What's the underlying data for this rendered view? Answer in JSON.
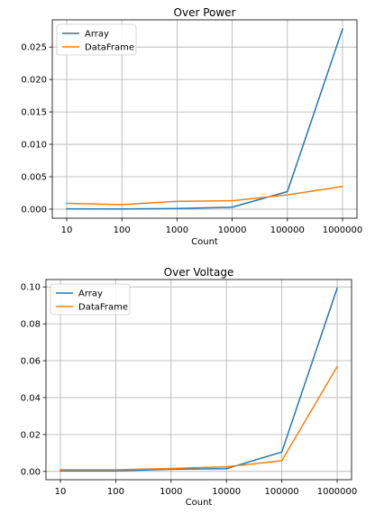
{
  "chart_data": [
    {
      "type": "line",
      "title": "Over Power",
      "xlabel": "Count",
      "ylabel": "",
      "categories": [
        "10",
        "100",
        "1000",
        "10000",
        "100000",
        "1000000"
      ],
      "yticks": [
        "0.000",
        "0.005",
        "0.010",
        "0.015",
        "0.020",
        "0.025"
      ],
      "ylim": [
        -0.0014,
        0.0292
      ],
      "grid": true,
      "legend_position": "top-left",
      "series": [
        {
          "name": "Array",
          "color": "#1f77b4",
          "values": [
            5e-05,
            2e-05,
            0.0001,
            0.0003,
            0.0027,
            0.0278
          ]
        },
        {
          "name": "DataFrame",
          "color": "#ff7f0e",
          "values": [
            0.0009,
            0.0007,
            0.0012,
            0.0013,
            0.0022,
            0.0035
          ]
        }
      ]
    },
    {
      "type": "line",
      "title": "Over Voltage",
      "xlabel": "Count",
      "ylabel": "",
      "categories": [
        "10",
        "100",
        "1000",
        "10000",
        "100000",
        "1000000"
      ],
      "yticks": [
        "0.00",
        "0.02",
        "0.04",
        "0.06",
        "0.08",
        "0.10"
      ],
      "ylim": [
        -0.0045,
        0.104
      ],
      "grid": true,
      "legend_position": "top-left",
      "series": [
        {
          "name": "Array",
          "color": "#1f77b4",
          "values": [
            0.0003,
            0.0003,
            0.0012,
            0.0015,
            0.0105,
            0.0993
          ]
        },
        {
          "name": "DataFrame",
          "color": "#ff7f0e",
          "values": [
            0.0009,
            0.0009,
            0.0016,
            0.0025,
            0.0058,
            0.0568
          ]
        }
      ]
    }
  ]
}
